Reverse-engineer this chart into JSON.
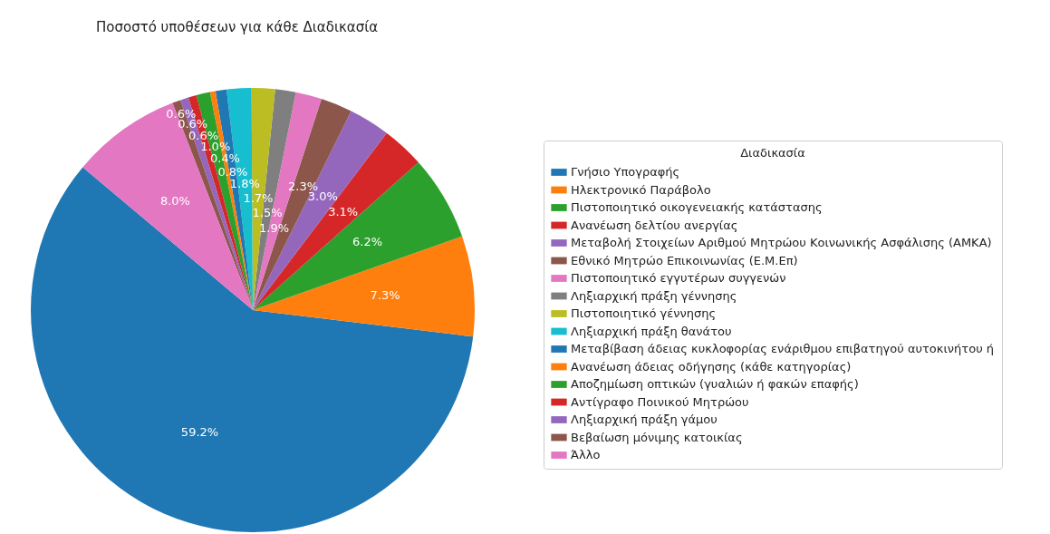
{
  "chart_data": {
    "type": "pie",
    "title": "Ποσοστό υποθέσεων για κάθε Διαδικασία",
    "legend_title": "Διαδικασία",
    "legend": "right",
    "categories": [
      "Γνήσιο Υπογραφής",
      "Ηλεκτρονικό Παράβολο",
      "Πιστοποιητικό οικογενειακής κατάστασης",
      "Ανανέωση δελτίου ανεργίας",
      "Μεταβολή Στοιχείων Αριθμού Μητρώου Κοινωνικής Ασφάλισης (ΑΜΚΑ)",
      "Εθνικό Μητρώο Επικοινωνίας (Ε.Μ.Επ)",
      "Πιστοποιητικό εγγυτέρων συγγενών",
      "Ληξιαρχική πράξη γέννησης",
      "Πιστοποιητικό γέννησης",
      "Ληξιαρχική πράξη θανάτου",
      "Μεταβίβαση άδειας κυκλοφορίας ενάριθμου επιβατηγού αυτοκινήτου ή",
      "Ανανέωση άδειας οδήγησης (κάθε κατηγορίας)",
      "Αποζημίωση οπτικών (γυαλιών ή φακών επαφής)",
      "Αντίγραφο Ποινικού Μητρώου",
      "Ληξιαρχική πράξη γάμου",
      "Βεβαίωση μόνιμης κατοικίας",
      "Άλλο"
    ],
    "values": [
      59.2,
      7.3,
      6.2,
      3.1,
      3.0,
      2.3,
      1.9,
      1.5,
      1.7,
      1.8,
      0.8,
      0.4,
      1.0,
      0.6,
      0.6,
      0.6,
      8.0
    ],
    "value_labels": [
      "59.2%",
      "7.3%",
      "6.2%",
      "3.1%",
      "3.0%",
      "2.3%",
      "1.9%",
      "1.5%",
      "1.7%",
      "1.8%",
      "0.8%",
      "0.4%",
      "1.0%",
      "0.6%",
      "0.6%",
      "0.6%",
      "8.0%"
    ],
    "colors": [
      "#1f77b4",
      "#ff7f0e",
      "#2ca02c",
      "#d62728",
      "#9467bd",
      "#8c564b",
      "#e377c2",
      "#7f7f7f",
      "#bcbd22",
      "#17becf",
      "#1f77b4",
      "#ff7f0e",
      "#2ca02c",
      "#d62728",
      "#9467bd",
      "#8c564b",
      "#e377c2"
    ]
  }
}
